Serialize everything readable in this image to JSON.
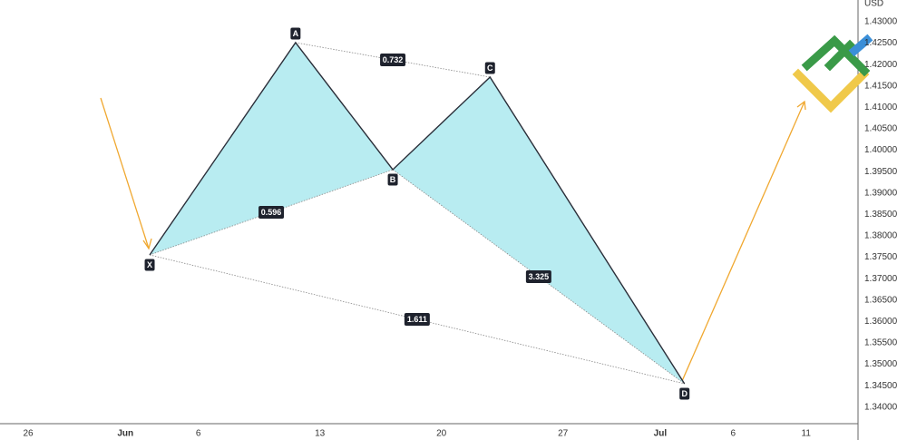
{
  "chart_data": {
    "type": "harmonic",
    "y_label": "USD",
    "points": {
      "labels": [
        "X",
        "A",
        "B",
        "C",
        "D"
      ],
      "x": [
        5,
        11,
        15,
        19,
        27
      ],
      "y": [
        1.37555,
        1.42513,
        1.39547,
        1.41708,
        1.34547
      ]
    },
    "ratios": [
      0.596,
      0.732,
      3.325,
      1.611
    ],
    "fill_color": "#b8ecf1",
    "xlim": [
      -1.157,
      34.1
    ],
    "xticks": [
      {
        "value": 0,
        "label": "26"
      },
      {
        "value": 4,
        "label": "Jun"
      },
      {
        "value": 7,
        "label": "6"
      },
      {
        "value": 12,
        "label": "13"
      },
      {
        "value": 17,
        "label": "20"
      },
      {
        "value": 22,
        "label": "27"
      },
      {
        "value": 26,
        "label": "Jul"
      },
      {
        "value": 29,
        "label": "6"
      },
      {
        "value": 32,
        "label": "11"
      }
    ],
    "ylim": [
      1.33614,
      1.43508
    ],
    "yticks": [
      {
        "value": 1.43,
        "label": "1.43000"
      },
      {
        "value": 1.425,
        "label": "1.42500"
      },
      {
        "value": 1.42,
        "label": "1.42000"
      },
      {
        "value": 1.415,
        "label": "1.41500"
      },
      {
        "value": 1.41,
        "label": "1.41000"
      },
      {
        "value": 1.405,
        "label": "1.40500"
      },
      {
        "value": 1.4,
        "label": "1.40000"
      },
      {
        "value": 1.395,
        "label": "1.39500"
      },
      {
        "value": 1.39,
        "label": "1.39000"
      },
      {
        "value": 1.385,
        "label": "1.38500"
      },
      {
        "value": 1.38,
        "label": "1.38000"
      },
      {
        "value": 1.375,
        "label": "1.37500"
      },
      {
        "value": 1.37,
        "label": "1.37000"
      },
      {
        "value": 1.365,
        "label": "1.36500"
      },
      {
        "value": 1.36,
        "label": "1.36000"
      },
      {
        "value": 1.355,
        "label": "1.35500"
      },
      {
        "value": 1.35,
        "label": "1.35000"
      },
      {
        "value": 1.345,
        "label": "1.34500"
      },
      {
        "value": 1.34,
        "label": "1.34000"
      }
    ]
  }
}
